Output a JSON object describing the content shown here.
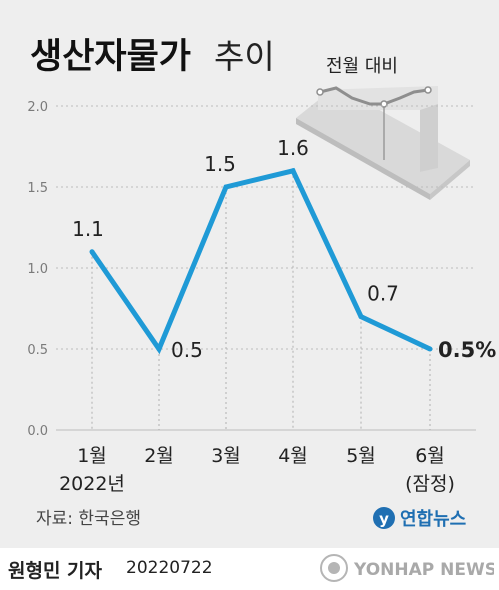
{
  "title_bold": "생산자물가",
  "title_light": "추이",
  "inset_label": "전월 대비",
  "source": "자료: 한국은행",
  "author": "원형민 기자",
  "date": "20220722",
  "logo_text": "연합뉴스",
  "watermark_text": "YONHAP NEWS",
  "colors": {
    "line": "#1f9ad6",
    "background": "#eeeeee",
    "grid": "#bcbcbc",
    "logo": "#1f6fb2"
  },
  "chart_data": {
    "type": "line",
    "categories": [
      "1월",
      "2월",
      "3월",
      "4월",
      "5월",
      "6월"
    ],
    "category_sublabels": [
      "2022년",
      "",
      "",
      "",
      "",
      "(잠정)"
    ],
    "values": [
      1.1,
      0.5,
      1.5,
      1.6,
      0.7,
      0.5
    ],
    "data_labels": [
      "1.1",
      "0.5",
      "1.5",
      "1.6",
      "0.7",
      "0.5%"
    ],
    "highlight_index": 5,
    "yticks": [
      "0.0",
      "0.5",
      "1.0",
      "1.5",
      "2.0"
    ],
    "ylim": [
      0,
      2.0
    ],
    "grid": true
  }
}
